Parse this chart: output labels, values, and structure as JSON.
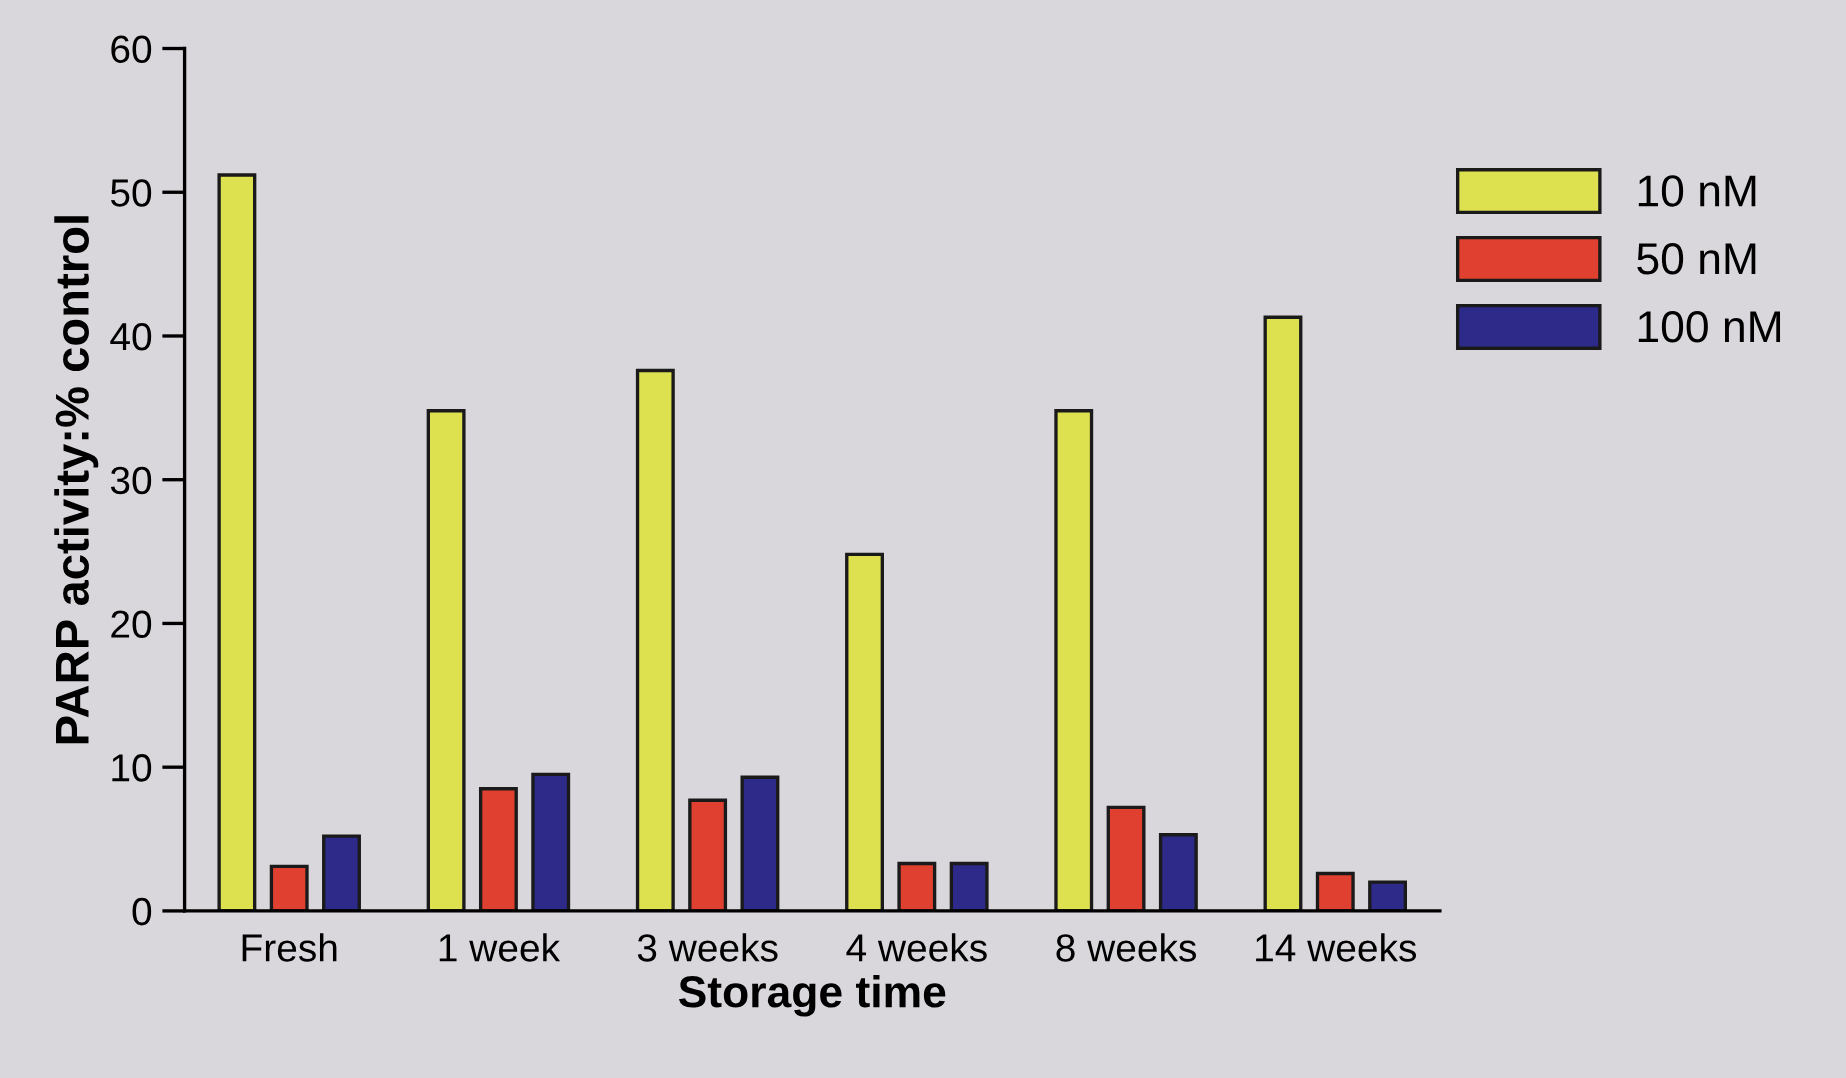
{
  "chart_data": {
    "type": "bar",
    "xlabel": "Storage time",
    "ylabel": "PARP activity:% control",
    "categories": [
      "Fresh",
      "1 week",
      "3 weeks",
      "4 weeks",
      "8 weeks",
      "14 weeks"
    ],
    "series": [
      {
        "name": "10 nM",
        "color": "#dde04f",
        "values": [
          51.2,
          34.8,
          37.6,
          24.8,
          34.8,
          41.3
        ]
      },
      {
        "name": "50 nM",
        "color": "#e0402f",
        "values": [
          3.1,
          8.5,
          7.7,
          3.3,
          7.2,
          2.6
        ]
      },
      {
        "name": "100 nM",
        "color": "#2e2a8a",
        "values": [
          5.2,
          9.5,
          9.3,
          3.3,
          5.3,
          2.0
        ]
      }
    ],
    "ylim": [
      0,
      60
    ],
    "yticks": [
      0,
      10,
      20,
      30,
      40,
      50,
      60
    ],
    "grid": false,
    "legend": "right"
  }
}
